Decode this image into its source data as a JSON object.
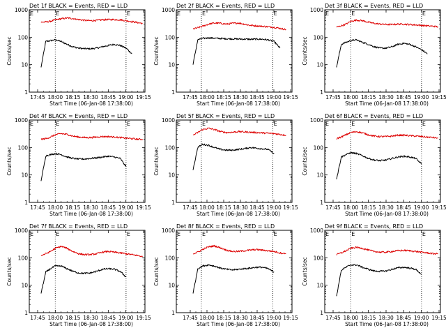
{
  "figure": {
    "ylabel": "Counts/sec",
    "xlabel": "Start Time (06-Jan-08 17:38:00)",
    "yticks": [
      {
        "v": 1000,
        "label": "1000"
      },
      {
        "v": 100,
        "label": "100"
      },
      {
        "v": 10,
        "label": "10"
      },
      {
        "v": 1,
        "label": "1"
      }
    ],
    "xtick_labels_narrow": [
      "17:45",
      "18:00",
      "18:15",
      "18:30",
      "18:45",
      "19:00",
      "19:15"
    ],
    "xtick_labels_wide": [
      "17:45",
      "18:00",
      "18:15",
      "18:30",
      "18:45",
      "19:00",
      "19:15"
    ],
    "marker_labels": [
      "E",
      "E"
    ],
    "colors": {
      "events": "#000000",
      "lld": "#dd0000",
      "axes": "#000000"
    }
  },
  "chart_data": [
    {
      "type": "line",
      "title": "Det 1f BLACK = Events, RED = LLD",
      "xlabel": "Start Time (06-Jan-08 17:38:00)",
      "ylabel": "Counts/sec",
      "y_scale": "log",
      "ylim": [
        1,
        1000
      ],
      "xlim": [
        "17:38",
        "19:16"
      ],
      "x_span": "narrow",
      "markers": [
        "18:00",
        "19:00"
      ],
      "x": [
        "17:48",
        "17:52",
        "17:56",
        "18:00",
        "18:05",
        "18:10",
        "18:15",
        "18:20",
        "18:25",
        "18:30",
        "18:35",
        "18:40",
        "18:45",
        "18:50",
        "18:55",
        "19:00",
        "19:05",
        "19:10",
        "19:14"
      ],
      "series": [
        {
          "name": "Events",
          "values": [
            8,
            70,
            75,
            80,
            70,
            55,
            45,
            40,
            38,
            38,
            40,
            45,
            50,
            55,
            50,
            40,
            25,
            null,
            null
          ]
        },
        {
          "name": "LLD",
          "values": [
            350,
            360,
            380,
            430,
            470,
            500,
            480,
            440,
            410,
            400,
            410,
            430,
            440,
            440,
            430,
            400,
            370,
            340,
            320
          ]
        }
      ]
    },
    {
      "type": "line",
      "title": "Det 2f BLACK = Events, RED = LLD",
      "xlabel": "Start Time (06-Jan-08 17:38:00)",
      "ylabel": "Counts/sec",
      "y_scale": "log",
      "ylim": [
        1,
        1000
      ],
      "xlim": [
        "17:38",
        "19:15"
      ],
      "x_span": "wide",
      "markers": [
        "17:59",
        "18:59"
      ],
      "x": [
        "17:52",
        "17:56",
        "18:00",
        "18:05",
        "18:10",
        "18:15",
        "18:20",
        "18:25",
        "18:30",
        "18:35",
        "18:40",
        "18:45",
        "18:50",
        "18:55",
        "19:00",
        "19:05",
        "19:10"
      ],
      "series": [
        {
          "name": "Events",
          "values": [
            10,
            80,
            90,
            95,
            92,
            90,
            88,
            87,
            86,
            85,
            84,
            85,
            85,
            80,
            70,
            40,
            null
          ]
        },
        {
          "name": "LLD",
          "values": [
            200,
            220,
            250,
            300,
            330,
            320,
            300,
            320,
            330,
            300,
            270,
            260,
            250,
            240,
            230,
            210,
            190
          ]
        }
      ]
    },
    {
      "type": "line",
      "title": "Det 3f BLACK = Events, RED = LLD",
      "xlabel": "Start Time (06-Jan-08 17:38:00)",
      "ylabel": "Counts/sec",
      "y_scale": "log",
      "ylim": [
        1,
        1000
      ],
      "xlim": [
        "17:38",
        "19:16"
      ],
      "x_span": "narrow",
      "markers": [
        "18:00",
        "19:00"
      ],
      "x": [
        "17:48",
        "17:52",
        "17:56",
        "18:00",
        "18:05",
        "18:10",
        "18:15",
        "18:20",
        "18:25",
        "18:30",
        "18:35",
        "18:40",
        "18:45",
        "18:50",
        "18:55",
        "19:00",
        "19:05",
        "19:10",
        "19:14"
      ],
      "series": [
        {
          "name": "Events",
          "values": [
            8,
            55,
            65,
            75,
            80,
            65,
            55,
            45,
            40,
            40,
            45,
            55,
            60,
            55,
            45,
            35,
            25,
            null,
            null
          ]
        },
        {
          "name": "LLD",
          "values": [
            230,
            260,
            300,
            380,
            420,
            400,
            350,
            320,
            300,
            290,
            290,
            300,
            300,
            290,
            280,
            270,
            260,
            250,
            240
          ]
        }
      ]
    },
    {
      "type": "line",
      "title": "Det 4f BLACK = Events, RED = LLD",
      "xlabel": "Start Time (06-Jan-08 17:38:00)",
      "ylabel": "Counts/sec",
      "y_scale": "log",
      "ylim": [
        1,
        1000
      ],
      "xlim": [
        "17:38",
        "19:16"
      ],
      "x_span": "narrow",
      "markers": [
        "18:00",
        "19:00"
      ],
      "x": [
        "17:48",
        "17:52",
        "17:56",
        "18:00",
        "18:05",
        "18:10",
        "18:15",
        "18:20",
        "18:25",
        "18:30",
        "18:35",
        "18:40",
        "18:45",
        "18:50",
        "18:55",
        "19:00",
        "19:05",
        "19:10",
        "19:14"
      ],
      "series": [
        {
          "name": "Events",
          "values": [
            6,
            50,
            55,
            60,
            55,
            45,
            40,
            38,
            38,
            40,
            42,
            45,
            48,
            45,
            40,
            20,
            null,
            null,
            null
          ]
        },
        {
          "name": "LLD",
          "values": [
            200,
            210,
            240,
            290,
            320,
            300,
            260,
            240,
            230,
            230,
            240,
            250,
            250,
            240,
            230,
            220,
            210,
            200,
            200
          ]
        }
      ]
    },
    {
      "type": "line",
      "title": "Det 5f BLACK = Events, RED = LLD",
      "xlabel": "Start Time (06-Jan-08 17:38:00)",
      "ylabel": "Counts/sec",
      "y_scale": "log",
      "ylim": [
        1,
        1000
      ],
      "xlim": [
        "17:38",
        "19:15"
      ],
      "x_span": "wide",
      "markers": [
        "17:59",
        "18:59"
      ],
      "x": [
        "17:52",
        "17:56",
        "18:00",
        "18:05",
        "18:10",
        "18:15",
        "18:20",
        "18:25",
        "18:30",
        "18:35",
        "18:40",
        "18:45",
        "18:50",
        "18:55",
        "19:00",
        "19:05",
        "19:10"
      ],
      "series": [
        {
          "name": "Events",
          "values": [
            15,
            100,
            130,
            120,
            100,
            85,
            80,
            80,
            85,
            90,
            100,
            95,
            90,
            85,
            60,
            null,
            null
          ]
        },
        {
          "name": "LLD",
          "values": [
            280,
            350,
            450,
            500,
            450,
            380,
            350,
            360,
            380,
            370,
            360,
            350,
            340,
            330,
            320,
            300,
            280
          ]
        }
      ]
    },
    {
      "type": "line",
      "title": "Det 6f BLACK = Events, RED = LLD",
      "xlabel": "Start Time (06-Jan-08 17:38:00)",
      "ylabel": "Counts/sec",
      "y_scale": "log",
      "ylim": [
        1,
        1000
      ],
      "xlim": [
        "17:38",
        "19:16"
      ],
      "x_span": "narrow",
      "markers": [
        "18:00",
        "19:00"
      ],
      "x": [
        "17:48",
        "17:52",
        "17:56",
        "18:00",
        "18:05",
        "18:10",
        "18:15",
        "18:20",
        "18:25",
        "18:30",
        "18:35",
        "18:40",
        "18:45",
        "18:50",
        "18:55",
        "19:00",
        "19:05",
        "19:10",
        "19:14"
      ],
      "series": [
        {
          "name": "Events",
          "values": [
            7,
            45,
            55,
            65,
            60,
            50,
            40,
            35,
            33,
            35,
            40,
            45,
            48,
            45,
            40,
            25,
            null,
            null,
            null
          ]
        },
        {
          "name": "LLD",
          "values": [
            210,
            240,
            290,
            350,
            380,
            340,
            290,
            260,
            250,
            250,
            260,
            280,
            280,
            270,
            260,
            250,
            240,
            230,
            220
          ]
        }
      ]
    },
    {
      "type": "line",
      "title": "Det 7f BLACK = Events, RED = LLD",
      "xlabel": "Start Time (06-Jan-08 17:38:00)",
      "ylabel": "Counts/sec",
      "y_scale": "log",
      "ylim": [
        1,
        1000
      ],
      "xlim": [
        "17:38",
        "19:16"
      ],
      "x_span": "narrow",
      "markers": [
        "18:00",
        "19:00"
      ],
      "x": [
        "17:48",
        "17:52",
        "17:56",
        "18:00",
        "18:05",
        "18:10",
        "18:15",
        "18:20",
        "18:25",
        "18:30",
        "18:35",
        "18:40",
        "18:45",
        "18:50",
        "18:55",
        "19:00",
        "19:05",
        "19:10",
        "19:14"
      ],
      "series": [
        {
          "name": "Events",
          "values": [
            5,
            30,
            40,
            50,
            50,
            40,
            32,
            28,
            27,
            28,
            32,
            38,
            40,
            38,
            32,
            20,
            null,
            null,
            null
          ]
        },
        {
          "name": "LLD",
          "values": [
            120,
            140,
            170,
            220,
            260,
            220,
            170,
            140,
            130,
            130,
            140,
            160,
            170,
            160,
            150,
            140,
            130,
            120,
            110
          ]
        }
      ]
    },
    {
      "type": "line",
      "title": "Det 8f BLACK = Events, RED = LLD",
      "xlabel": "Start Time (06-Jan-08 17:38:00)",
      "ylabel": "Counts/sec",
      "y_scale": "log",
      "ylim": [
        1,
        1000
      ],
      "xlim": [
        "17:38",
        "19:15"
      ],
      "x_span": "wide",
      "markers": [
        "17:59",
        "18:59"
      ],
      "x": [
        "17:52",
        "17:56",
        "18:00",
        "18:05",
        "18:10",
        "18:15",
        "18:20",
        "18:25",
        "18:30",
        "18:35",
        "18:40",
        "18:45",
        "18:50",
        "18:55",
        "19:00",
        "19:05",
        "19:10"
      ],
      "series": [
        {
          "name": "Events",
          "values": [
            5,
            40,
            50,
            55,
            50,
            42,
            38,
            36,
            38,
            40,
            42,
            45,
            45,
            40,
            30,
            null,
            null
          ]
        },
        {
          "name": "LLD",
          "values": [
            140,
            160,
            200,
            250,
            270,
            230,
            190,
            170,
            170,
            180,
            190,
            200,
            190,
            180,
            170,
            150,
            140
          ]
        }
      ]
    },
    {
      "type": "line",
      "title": "Det 9f BLACK = Events, RED = LLD",
      "xlabel": "Start Time (06-Jan-08 17:38:00)",
      "ylabel": "Counts/sec",
      "y_scale": "log",
      "ylim": [
        1,
        1000
      ],
      "xlim": [
        "17:38",
        "19:16"
      ],
      "x_span": "narrow",
      "markers": [
        "18:00",
        "19:00"
      ],
      "x": [
        "17:48",
        "17:52",
        "17:56",
        "18:00",
        "18:05",
        "18:10",
        "18:15",
        "18:20",
        "18:25",
        "18:30",
        "18:35",
        "18:40",
        "18:45",
        "18:50",
        "18:55",
        "19:00",
        "19:05",
        "19:10",
        "19:14"
      ],
      "series": [
        {
          "name": "Events",
          "values": [
            4,
            35,
            45,
            55,
            55,
            45,
            38,
            33,
            32,
            33,
            38,
            43,
            45,
            42,
            38,
            25,
            null,
            null,
            null
          ]
        },
        {
          "name": "LLD",
          "values": [
            130,
            150,
            180,
            220,
            240,
            220,
            190,
            170,
            160,
            160,
            170,
            180,
            185,
            180,
            170,
            160,
            150,
            140,
            140
          ]
        }
      ]
    }
  ]
}
